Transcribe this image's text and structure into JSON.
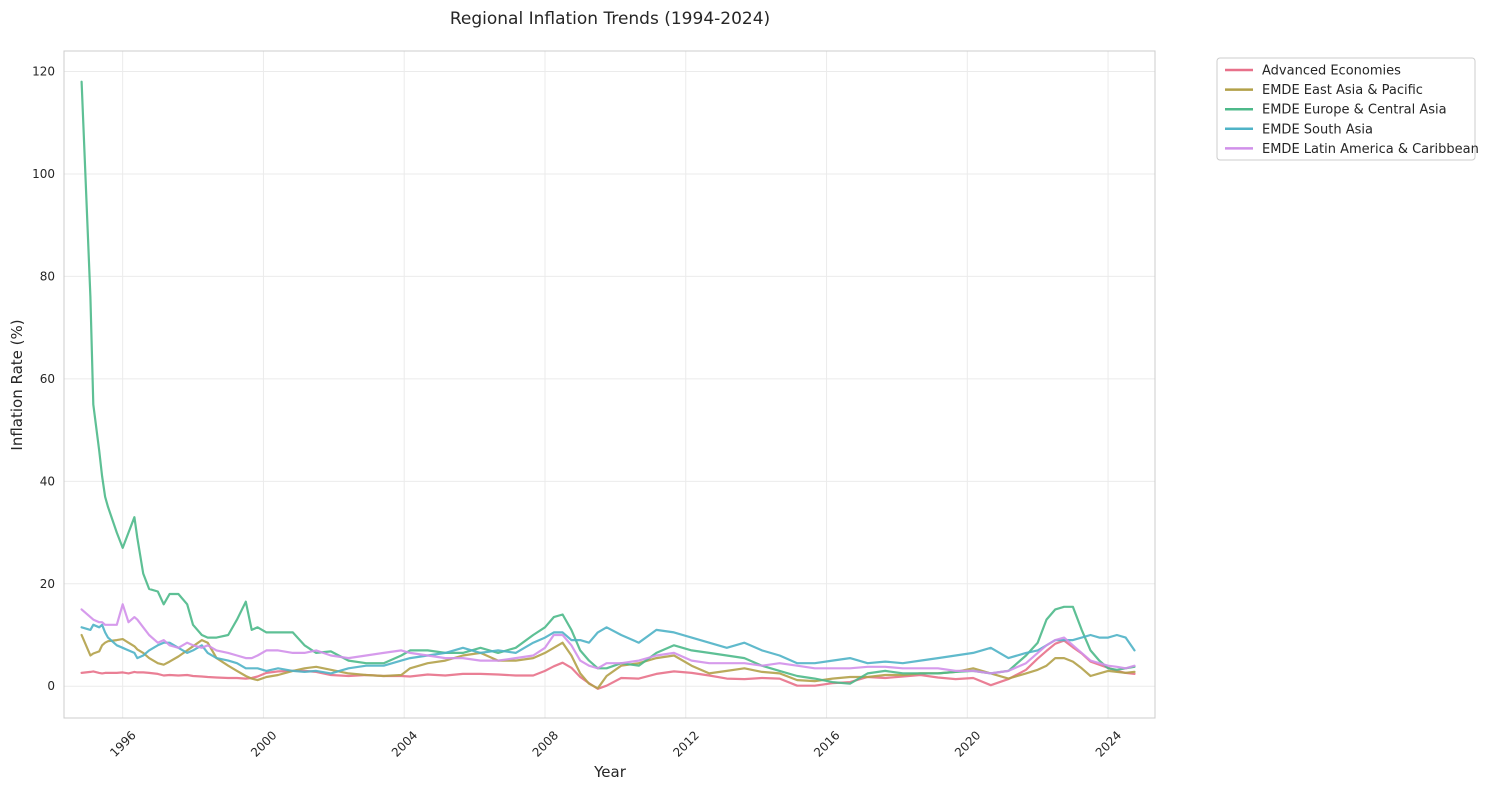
{
  "chart_data": {
    "type": "line",
    "title": "Regional Inflation Trends (1994-2024)",
    "xlabel": "Year",
    "ylabel": "Inflation Rate (%)",
    "xlim": [
      "1994-05",
      "2025-05"
    ],
    "ylim": [
      -6.2,
      124
    ],
    "x_ticks": [
      "1996",
      "2000",
      "2004",
      "2008",
      "2012",
      "2016",
      "2020",
      "2024"
    ],
    "y_ticks": [
      0,
      20,
      40,
      60,
      80,
      100,
      120
    ],
    "grid": true,
    "legend_position": "outside top-right",
    "x": [
      "1994-11",
      "1995-02",
      "1995-03",
      "1995-05",
      "1995-06",
      "1995-07",
      "1995-08",
      "1995-11",
      "1996-01",
      "1996-03",
      "1996-05",
      "1996-06",
      "1996-08",
      "1996-10",
      "1997-01",
      "1997-03",
      "1997-05",
      "1997-08",
      "1997-11",
      "1998-01",
      "1998-04",
      "1998-06",
      "1998-09",
      "1999-01",
      "1999-04",
      "1999-07",
      "1999-09",
      "1999-11",
      "2000-02",
      "2000-06",
      "2000-11",
      "2001-03",
      "2001-07",
      "2001-12",
      "2002-06",
      "2002-12",
      "2003-06",
      "2003-12",
      "2004-03",
      "2004-09",
      "2005-03",
      "2005-09",
      "2006-03",
      "2006-09",
      "2007-03",
      "2007-09",
      "2008-01",
      "2008-04",
      "2008-07",
      "2008-10",
      "2009-01",
      "2009-04",
      "2009-07",
      "2009-10",
      "2010-03",
      "2010-09",
      "2011-03",
      "2011-09",
      "2012-03",
      "2012-09",
      "2013-03",
      "2013-09",
      "2014-03",
      "2014-09",
      "2015-03",
      "2015-09",
      "2016-03",
      "2016-09",
      "2017-03",
      "2017-09",
      "2018-03",
      "2018-09",
      "2019-03",
      "2019-09",
      "2020-03",
      "2020-09",
      "2021-03",
      "2021-09",
      "2022-01",
      "2022-04",
      "2022-07",
      "2022-10",
      "2023-01",
      "2023-04",
      "2023-07",
      "2023-10",
      "2024-01",
      "2024-04",
      "2024-07",
      "2024-10"
    ],
    "series": [
      {
        "name": "Advanced Economies",
        "color": "#e8718a",
        "values": [
          2.6,
          2.8,
          2.9,
          2.6,
          2.5,
          2.6,
          2.6,
          2.6,
          2.7,
          2.5,
          2.8,
          2.7,
          2.7,
          2.6,
          2.4,
          2.1,
          2.2,
          2.1,
          2.2,
          2.0,
          1.9,
          1.8,
          1.7,
          1.6,
          1.6,
          1.5,
          1.6,
          1.9,
          2.6,
          2.9,
          3.0,
          3.0,
          2.8,
          2.2,
          2.0,
          2.2,
          2.0,
          2.0,
          1.9,
          2.3,
          2.1,
          2.4,
          2.4,
          2.3,
          2.1,
          2.1,
          3.0,
          3.9,
          4.6,
          3.6,
          1.8,
          0.6,
          -0.5,
          0.1,
          1.6,
          1.5,
          2.4,
          2.9,
          2.6,
          2.1,
          1.5,
          1.4,
          1.6,
          1.5,
          0.1,
          0.1,
          0.6,
          0.8,
          1.8,
          1.6,
          1.9,
          2.2,
          1.7,
          1.4,
          1.6,
          0.2,
          1.4,
          3.2,
          5.4,
          6.9,
          8.3,
          8.9,
          7.6,
          6.4,
          4.8,
          4.2,
          3.6,
          3.0,
          2.6,
          2.4
        ]
      },
      {
        "name": "EMDE East Asia & Pacific",
        "color": "#b2a149",
        "values": [
          10.0,
          6.0,
          6.4,
          6.8,
          8.0,
          8.5,
          8.8,
          9.0,
          9.2,
          8.5,
          7.8,
          7.2,
          6.5,
          5.5,
          4.5,
          4.2,
          4.8,
          5.8,
          7.0,
          7.8,
          9.0,
          8.5,
          5.5,
          4.0,
          3.0,
          2.0,
          1.5,
          1.2,
          1.8,
          2.2,
          3.0,
          3.5,
          3.8,
          3.2,
          2.5,
          2.2,
          2.0,
          2.2,
          3.5,
          4.5,
          5.0,
          6.0,
          6.5,
          5.0,
          5.0,
          5.5,
          6.5,
          7.5,
          8.5,
          6.0,
          2.5,
          0.5,
          -0.4,
          2.0,
          4.0,
          4.5,
          5.5,
          6.0,
          4.0,
          2.5,
          3.0,
          3.5,
          2.8,
          2.5,
          1.2,
          1.0,
          1.5,
          1.8,
          1.8,
          2.2,
          2.2,
          2.5,
          2.5,
          2.8,
          3.5,
          2.5,
          1.5,
          2.5,
          3.2,
          4.0,
          5.5,
          5.5,
          4.8,
          3.5,
          2.0,
          2.5,
          3.0,
          2.8,
          2.6,
          2.8
        ]
      },
      {
        "name": "EMDE Europe & Central Asia",
        "color": "#4db98a",
        "values": [
          118.0,
          76.0,
          55.0,
          46.0,
          41.0,
          37.0,
          35.0,
          30.0,
          27.0,
          30.0,
          33.0,
          29.0,
          22.0,
          19.0,
          18.5,
          16.0,
          18.0,
          18.0,
          16.0,
          12.0,
          10.0,
          9.5,
          9.5,
          10.0,
          13.0,
          16.5,
          11.0,
          11.5,
          10.5,
          10.5,
          10.5,
          8.0,
          6.5,
          6.8,
          5.0,
          4.5,
          4.5,
          6.0,
          7.0,
          7.0,
          6.5,
          6.5,
          7.5,
          6.5,
          7.5,
          10.0,
          11.5,
          13.5,
          14.0,
          11.0,
          7.0,
          5.0,
          3.5,
          3.5,
          4.5,
          4.0,
          6.5,
          8.0,
          7.0,
          6.5,
          6.0,
          5.5,
          4.0,
          3.0,
          2.0,
          1.5,
          0.8,
          0.5,
          2.5,
          3.0,
          2.5,
          2.5,
          2.5,
          2.8,
          3.0,
          2.5,
          3.0,
          6.0,
          8.5,
          13.0,
          15.0,
          15.5,
          15.5,
          11.0,
          7.0,
          5.0,
          3.5,
          3.2,
          3.5,
          3.8
        ]
      },
      {
        "name": "EMDE South Asia",
        "color": "#4fb3c7",
        "values": [
          11.5,
          11.0,
          12.0,
          11.5,
          12.0,
          10.5,
          9.5,
          8.0,
          7.5,
          7.0,
          6.5,
          5.5,
          6.0,
          7.0,
          8.0,
          8.5,
          8.5,
          7.5,
          6.5,
          7.0,
          8.0,
          6.5,
          5.5,
          5.0,
          4.5,
          3.5,
          3.5,
          3.5,
          3.0,
          3.5,
          3.0,
          2.8,
          3.0,
          2.5,
          3.5,
          4.0,
          4.0,
          5.0,
          5.5,
          6.0,
          6.5,
          7.5,
          6.5,
          7.0,
          6.5,
          8.5,
          9.5,
          10.5,
          10.5,
          9.0,
          9.0,
          8.5,
          10.5,
          11.5,
          10.0,
          8.5,
          11.0,
          10.5,
          9.5,
          8.5,
          7.5,
          8.5,
          7.0,
          6.0,
          4.5,
          4.5,
          5.0,
          5.5,
          4.5,
          4.8,
          4.5,
          5.0,
          5.5,
          6.0,
          6.5,
          7.5,
          5.5,
          6.5,
          7.0,
          8.0,
          9.0,
          9.0,
          9.0,
          9.5,
          10.0,
          9.5,
          9.5,
          10.0,
          9.5,
          7.0
        ]
      },
      {
        "name": "EMDE Latin America & Caribbean",
        "color": "#d190ea",
        "values": [
          15.0,
          13.5,
          13.0,
          12.5,
          12.5,
          12.0,
          12.0,
          12.0,
          16.0,
          12.5,
          13.5,
          13.0,
          11.5,
          10.0,
          8.5,
          9.0,
          8.0,
          7.5,
          8.5,
          8.0,
          7.5,
          8.0,
          7.0,
          6.5,
          6.0,
          5.5,
          5.5,
          6.0,
          7.0,
          7.0,
          6.5,
          6.5,
          7.0,
          6.0,
          5.5,
          6.0,
          6.5,
          7.0,
          6.5,
          6.0,
          5.5,
          5.5,
          5.0,
          5.0,
          5.5,
          6.0,
          7.5,
          10.0,
          10.0,
          8.0,
          5.0,
          4.0,
          3.5,
          4.5,
          4.5,
          5.0,
          6.0,
          6.5,
          5.0,
          4.5,
          4.5,
          4.5,
          4.0,
          4.5,
          4.0,
          3.5,
          3.5,
          3.5,
          3.8,
          3.8,
          3.5,
          3.5,
          3.5,
          3.0,
          3.0,
          2.5,
          3.0,
          4.5,
          6.5,
          8.0,
          9.0,
          9.5,
          8.0,
          6.5,
          5.0,
          4.5,
          4.0,
          3.8,
          3.5,
          4.0
        ]
      }
    ]
  }
}
